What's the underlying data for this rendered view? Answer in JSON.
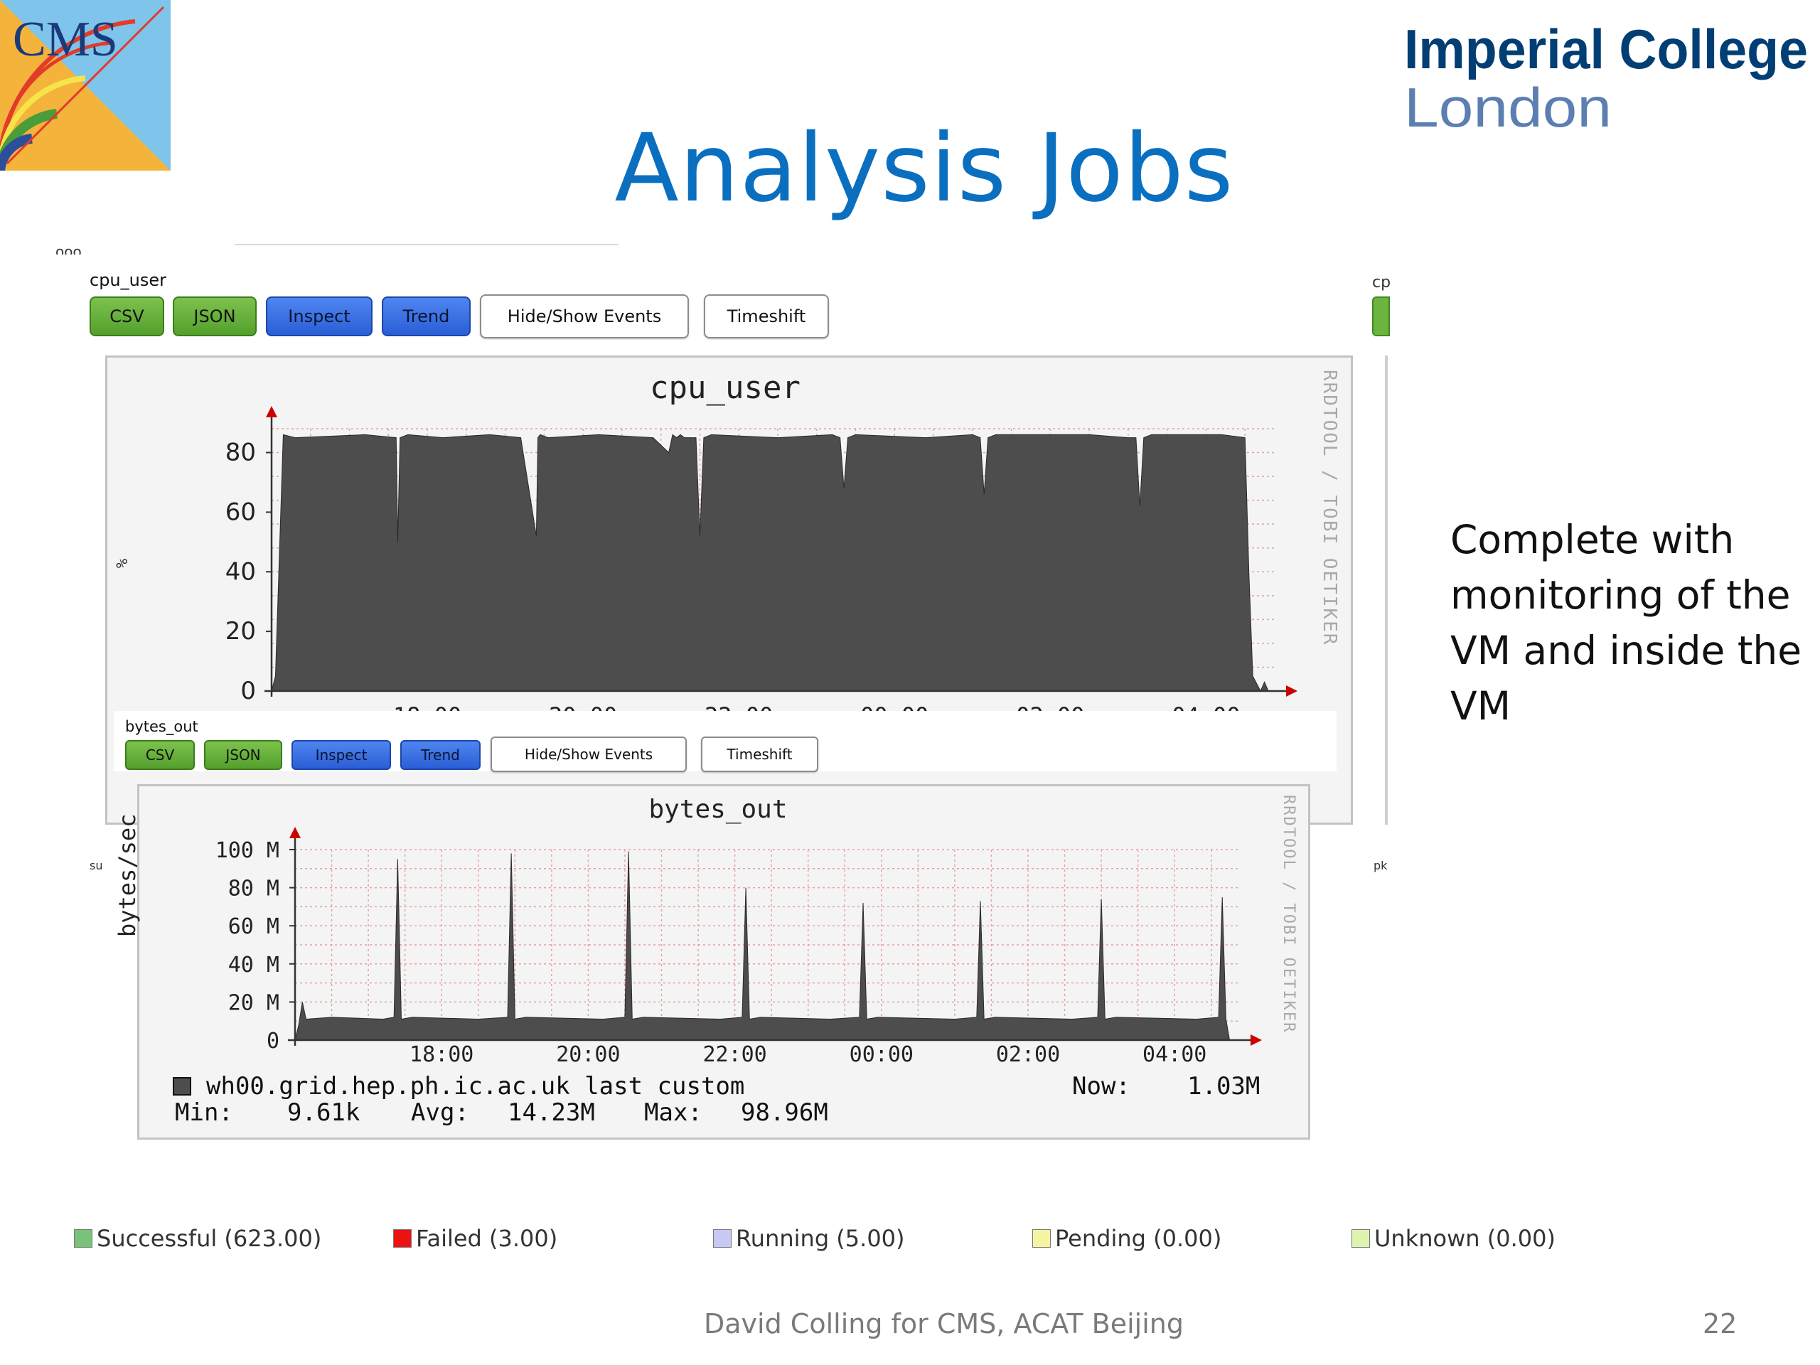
{
  "slide": {
    "title": "Analysis Jobs",
    "logos": {
      "cms_text": "CMS",
      "imperial_line1": "Imperial College",
      "imperial_line2": "London"
    },
    "side_text": [
      "Complete with",
      "monitoring of the",
      "VM and inside the",
      "VM"
    ],
    "footer": "David Colling for CMS, ACAT Beijing",
    "page_number": "22",
    "colors": {
      "title": "#0b6fc0",
      "imperial": "#003e74",
      "area_fill": "#4d4d4d",
      "grid": "#e8a0a0"
    }
  },
  "fragments": {
    "top_left": "ooo",
    "right_top": "cp",
    "left_mid": "su",
    "right_mid": "pk"
  },
  "cpu_panel": {
    "label": "cpu_user",
    "buttons": [
      "CSV",
      "JSON",
      "Inspect",
      "Trend",
      "Hide/Show Events",
      "Timeshift"
    ],
    "graph_title": "cpu_user",
    "rrd_credit": "RRDTOOL / TOBI OETIKER",
    "ylabel": "%"
  },
  "bytes_panel": {
    "label": "bytes_out",
    "buttons": [
      "CSV",
      "JSON",
      "Inspect",
      "Trend",
      "Hide/Show Events",
      "Timeshift"
    ],
    "graph_title": "bytes_out",
    "rrd_credit": "RRDTOOL / TOBI OETIKER",
    "ylabel": "bytes/sec",
    "legend": {
      "host": "wh00.grid.hep.ph.ic.ac.uk last custom",
      "now_label": "Now:",
      "now_value": "1.03M",
      "min_label": "Min:",
      "min_value": "9.61k",
      "avg_label": "Avg:",
      "avg_value": "14.23M",
      "max_label": "Max:",
      "max_value": "98.96M"
    }
  },
  "status_legend": [
    {
      "label": "Successful (623.00)",
      "color": "#79c27a"
    },
    {
      "label": "Failed (3.00)",
      "color": "#ee1111"
    },
    {
      "label": "Running (5.00)",
      "color": "#c8c8f4"
    },
    {
      "label": "Pending (0.00)",
      "color": "#f6f3a2"
    },
    {
      "label": "Unknown (0.00)",
      "color": "#def3b0"
    }
  ],
  "chart_data": [
    {
      "type": "area",
      "title": "cpu_user",
      "ylabel": "%",
      "xlabel": "",
      "x_ticks": [
        "18:00",
        "20:00",
        "22:00",
        "00:00",
        "02:00",
        "04:00"
      ],
      "y_ticks": [
        0,
        20,
        40,
        60,
        80
      ],
      "ylim": [
        0,
        88
      ],
      "x_hours": [
        16.0,
        16.05,
        16.15,
        16.3,
        17.2,
        17.6,
        17.62,
        17.65,
        17.75,
        18.2,
        18.8,
        19.2,
        19.4,
        19.42,
        19.45,
        19.55,
        20.2,
        20.9,
        21.1,
        21.15,
        21.2,
        21.25,
        21.3,
        21.45,
        21.5,
        21.55,
        21.65,
        22.5,
        23.2,
        23.3,
        23.35,
        23.4,
        23.5,
        24.4,
        25.0,
        25.1,
        25.15,
        25.2,
        25.3,
        26.5,
        27.0,
        27.1,
        27.15,
        27.2,
        27.3,
        28.2,
        28.5,
        28.55,
        28.6,
        28.7,
        28.75,
        28.8
      ],
      "y_values": [
        0,
        5,
        86,
        85,
        86,
        85,
        50,
        85,
        86,
        85,
        86,
        85,
        52,
        85,
        86,
        85,
        86,
        85,
        80,
        86,
        85,
        86,
        85,
        85,
        52,
        85,
        86,
        85,
        86,
        85,
        68,
        85,
        86,
        85,
        86,
        85,
        66,
        85,
        86,
        86,
        85,
        85,
        62,
        85,
        86,
        86,
        85,
        40,
        5,
        0,
        3,
        0
      ]
    },
    {
      "type": "area",
      "title": "bytes_out",
      "ylabel": "bytes/sec",
      "xlabel": "",
      "x_ticks": [
        "18:00",
        "20:00",
        "22:00",
        "00:00",
        "02:00",
        "04:00"
      ],
      "y_ticks": [
        "0",
        "20 M",
        "40 M",
        "60 M",
        "80 M",
        "100 M"
      ],
      "ylim": [
        0,
        100
      ],
      "baseline_M": 11,
      "x_hours": [
        16.0,
        16.05,
        16.1,
        16.15,
        16.5,
        17.2,
        17.35,
        17.4,
        17.45,
        17.6,
        18.5,
        18.9,
        18.95,
        19.0,
        19.15,
        20.2,
        20.5,
        20.55,
        20.6,
        20.75,
        21.8,
        22.1,
        22.15,
        22.2,
        22.35,
        23.3,
        23.7,
        23.75,
        23.8,
        23.95,
        25.0,
        25.3,
        25.35,
        25.4,
        25.55,
        26.6,
        26.95,
        27.0,
        27.05,
        27.2,
        28.3,
        28.6,
        28.65,
        28.7,
        28.75
      ],
      "y_values": [
        0,
        8,
        20,
        11,
        12,
        11,
        12,
        95,
        11,
        12,
        11,
        12,
        98,
        11,
        12,
        11,
        12,
        99,
        11,
        12,
        11,
        12,
        80,
        11,
        12,
        11,
        12,
        72,
        11,
        12,
        11,
        12,
        73,
        11,
        12,
        11,
        12,
        74,
        11,
        12,
        11,
        12,
        75,
        11,
        0
      ]
    }
  ]
}
